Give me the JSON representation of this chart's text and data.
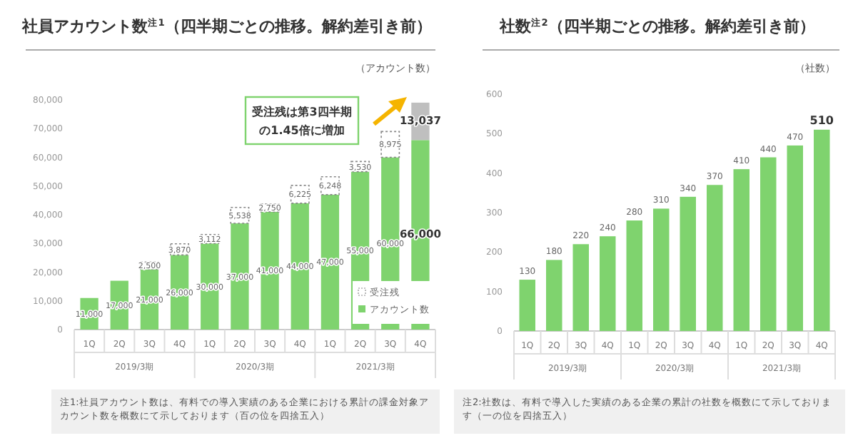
{
  "chart_data": [
    {
      "type": "bar",
      "title": "社員アカウント数$^{注1}$（四半期ごとの推移。解約差引き前）",
      "ylabel": "（アカウント数）",
      "stacked": true,
      "legend": "bottom right",
      "categories": [
        "1Q",
        "2Q",
        "3Q",
        "4Q",
        "1Q",
        "2Q",
        "3Q",
        "4Q",
        "1Q",
        "2Q",
        "3Q",
        "4Q"
      ],
      "ylim": [
        0,
        80000
      ],
      "yticks": [
        {
          "value": 0,
          "label": "0"
        },
        {
          "value": 10000,
          "label": "10,000"
        },
        {
          "value": 20000,
          "label": "20,000"
        },
        {
          "value": 30000,
          "label": "30,000"
        },
        {
          "value": 40000,
          "label": "40,000"
        },
        {
          "value": 50000,
          "label": "50,000"
        },
        {
          "value": 60000,
          "label": "60,000"
        },
        {
          "value": 70000,
          "label": "70,000"
        },
        {
          "value": 80000,
          "label": "80,000"
        }
      ],
      "series": [
        {
          "name": "アカウント数",
          "color": "#7fd36e",
          "values": [
            11000,
            17000,
            21000,
            26000,
            30000,
            37000,
            41000,
            44000,
            47000,
            55000,
            60000,
            66000
          ],
          "value_labels": [
            "11,000",
            "17,000",
            "21,000",
            "26,000",
            "30,000",
            "37,000",
            "41,000",
            "44,000",
            "47,000",
            "55,000",
            "60,000",
            "66,000"
          ]
        },
        {
          "name": "受注残",
          "line_style": "dotted",
          "colors": [
            null,
            null,
            "#ffffff",
            "#ffffff",
            "#ffffff",
            "#ffffff",
            "#ffffff",
            "#ffffff",
            "#ffffff",
            "#ffffff",
            "#ffffff",
            "#bfbfbf"
          ],
          "values": [
            null,
            null,
            2500,
            3870,
            3112,
            5538,
            2750,
            6225,
            6248,
            3530,
            8975,
            13037
          ],
          "value_labels": [
            null,
            null,
            "2,500",
            "3,870",
            "3,112",
            "5,538",
            "2,750",
            "6,225",
            "6,248",
            "3,530",
            "8,975",
            "13,037"
          ]
        }
      ],
      "annotations": [
        "受注残は第3四半期の1.45倍に増加",
        "2019/3期",
        "2020/3期",
        "2021/3期",
        "注1:社員アカウント数は、有料での導入実績のある企業における累計の課金対象アカウント数を概数にて示しております（百の位を四捨五入）"
      ]
    },
    {
      "type": "bar",
      "title": "社数$^{注2}$（四半期ごとの推移。解約差引き前）",
      "ylabel": "（社数）",
      "color": "#7fd36e",
      "data_labels": true,
      "categories": [
        "1Q",
        "2Q",
        "3Q",
        "4Q",
        "1Q",
        "2Q",
        "3Q",
        "4Q",
        "1Q",
        "2Q",
        "3Q",
        "4Q"
      ],
      "values": [
        130,
        180,
        220,
        240,
        280,
        310,
        340,
        370,
        410,
        440,
        470,
        510
      ],
      "ylim": [
        0,
        600
      ],
      "yticks": [
        0,
        100,
        200,
        300,
        400,
        500,
        600
      ],
      "annotations": [
        "2019/3期",
        "2020/3期",
        "2021/3期",
        "注2:社数は、有料で導入した実績のある企業の累計の社数を概数にて示しております（一の位を四捨五入）"
      ]
    }
  ]
}
